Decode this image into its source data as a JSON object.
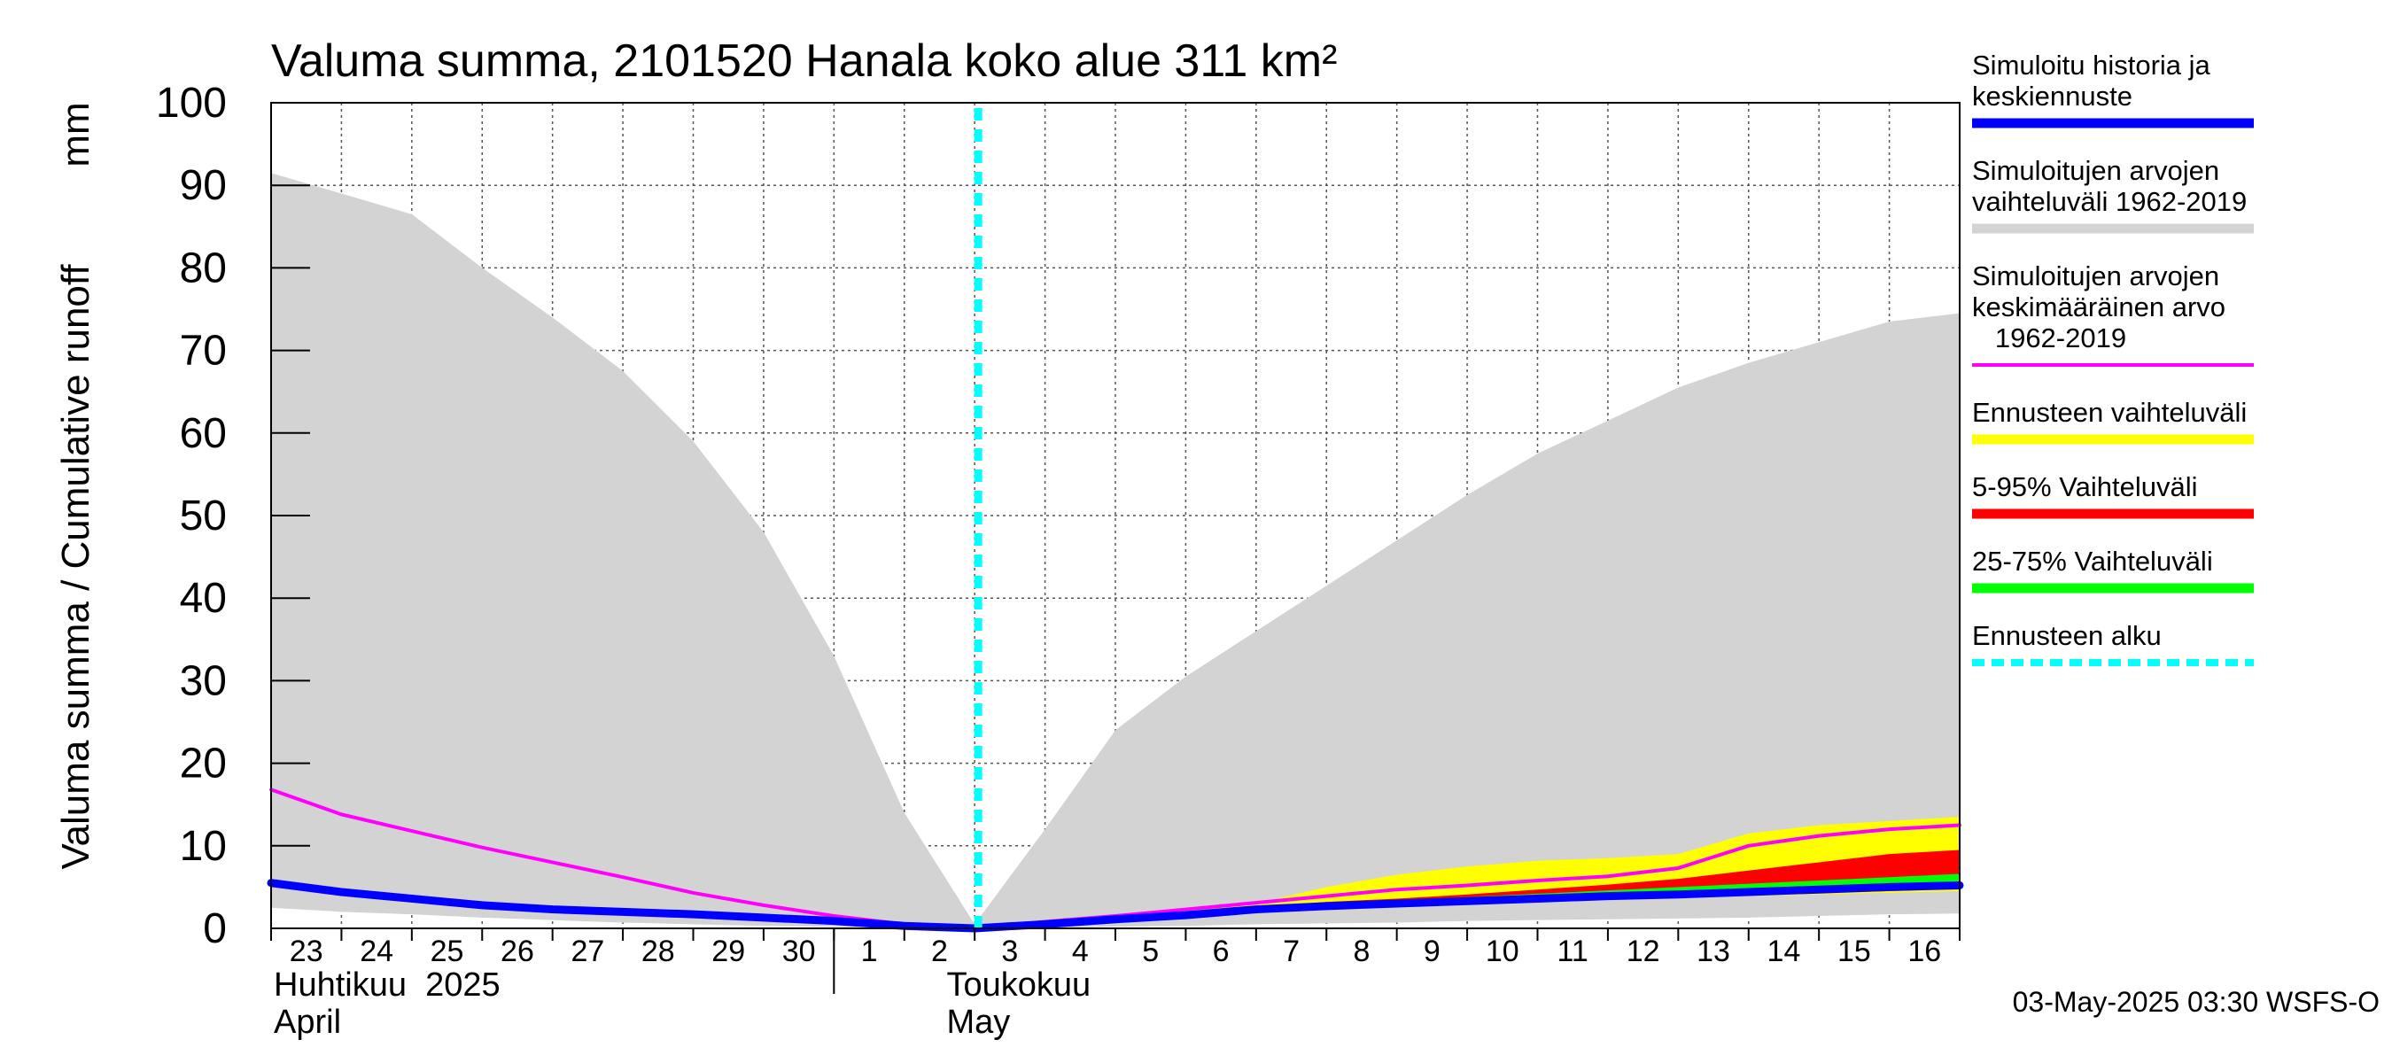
{
  "chart_data": {
    "type": "area",
    "title": "Valuma summa, 2101520 Hanala koko alue 311 km²",
    "ylabel": "Valuma summa / Cumulative runoff",
    "yunit": "mm",
    "ylim": [
      0,
      100
    ],
    "yticks": [
      0,
      10,
      20,
      30,
      40,
      50,
      60,
      70,
      80,
      90,
      100
    ],
    "grid": true,
    "x_day_labels": [
      "23",
      "24",
      "25",
      "26",
      "27",
      "28",
      "29",
      "30",
      "1",
      "2",
      "3",
      "4",
      "5",
      "6",
      "7",
      "8",
      "9",
      "10",
      "11",
      "12",
      "13",
      "14",
      "15",
      "16"
    ],
    "month_labels": [
      {
        "fi": "Huhtikuu  2025",
        "en": "April"
      },
      {
        "fi": "Toukokuu",
        "en": "May"
      }
    ],
    "forecast_start": "2025-05-03",
    "legend_position": "right",
    "legend": [
      {
        "label_lines": [
          "Simuloitu historia ja",
          "keskiennuste"
        ],
        "color": "#0000ff",
        "style": "thick"
      },
      {
        "label_lines": [
          "Simuloitujen arvojen",
          "vaihteluväli 1962-2019"
        ],
        "color": "#d3d3d3",
        "style": "thick"
      },
      {
        "label_lines": [
          "Simuloitujen arvojen",
          "keskimääräinen arvo",
          "   1962-2019"
        ],
        "color": "#ff00ff",
        "style": "line"
      },
      {
        "label_lines": [
          "Ennusteen vaihteluväli"
        ],
        "color": "#ffff00",
        "style": "thick"
      },
      {
        "label_lines": [
          "5-95% Vaihteluväli"
        ],
        "color": "#ff0000",
        "style": "thick"
      },
      {
        "label_lines": [
          "25-75% Vaihteluväli"
        ],
        "color": "#00ff00",
        "style": "thick"
      },
      {
        "label_lines": [
          "Ennusteen alku"
        ],
        "color": "#00ffff",
        "style": "dashed"
      }
    ],
    "series": [
      {
        "name": "Simuloitujen arvojen vaihteluväli 1962-2019",
        "kind": "band",
        "color": "#d3d3d3",
        "x": [
          -0.5,
          0.5,
          1.5,
          2.5,
          3.5,
          4.5,
          5.5,
          6.5,
          7.5,
          8.5,
          9.5,
          10.5,
          11.5,
          12.5,
          13.5,
          14.5,
          15.5,
          16.5,
          17.5,
          18.5,
          19.5,
          20.5,
          21.5,
          22.5,
          23.5
        ],
        "upper": [
          91.5,
          89,
          86.5,
          80,
          74,
          67.5,
          59,
          48,
          33,
          14,
          0.5,
          12,
          24,
          30.5,
          36,
          41.5,
          47,
          52.5,
          57.5,
          61.5,
          65.5,
          68.5,
          71,
          73.5,
          74.5
        ],
        "lower": [
          2.5,
          2,
          1.7,
          1.3,
          1.0,
          0.7,
          0.5,
          0.3,
          0.2,
          0.1,
          0.0,
          0.1,
          0.2,
          0.3,
          0.5,
          0.6,
          0.7,
          0.9,
          1.0,
          1.1,
          1.2,
          1.3,
          1.5,
          1.7,
          1.8
        ]
      },
      {
        "name": "Ennusteen vaihteluväli",
        "kind": "band",
        "color": "#ffff00",
        "x": [
          10.5,
          11.5,
          12.5,
          13.5,
          14.5,
          15.5,
          16.5,
          17.5,
          18.5,
          19.5,
          20.5,
          21.5,
          22.5,
          23.5
        ],
        "upper": [
          0.3,
          1.5,
          2.2,
          3.0,
          5.0,
          6.5,
          7.5,
          8.2,
          8.5,
          9.0,
          11.5,
          12.5,
          13.0,
          13.5
        ],
        "lower": [
          0.3,
          1.2,
          1.7,
          2.3,
          2.6,
          2.8,
          3.0,
          3.3,
          3.5,
          3.7,
          3.9,
          4.1,
          4.3,
          4.5
        ]
      },
      {
        "name": "5-95% Vaihteluväli",
        "kind": "band",
        "color": "#ff0000",
        "x": [
          10.5,
          11.5,
          12.5,
          13.5,
          14.5,
          15.5,
          16.5,
          17.5,
          18.5,
          19.5,
          20.5,
          21.5,
          22.5,
          23.5
        ],
        "upper": [
          0.3,
          1.4,
          1.9,
          2.5,
          3.2,
          3.6,
          4.1,
          4.7,
          5.3,
          6.0,
          7.0,
          8.0,
          9.0,
          9.5
        ],
        "lower": [
          0.3,
          1.3,
          1.7,
          2.3,
          2.7,
          3.0,
          3.2,
          3.4,
          3.6,
          3.8,
          4.0,
          4.3,
          4.5,
          4.8
        ]
      },
      {
        "name": "25-75% Vaihteluväli",
        "kind": "band",
        "color": "#00ff00",
        "x": [
          10.5,
          11.5,
          12.5,
          13.5,
          14.5,
          15.5,
          16.5,
          17.5,
          18.5,
          19.5,
          20.5,
          21.5,
          22.5,
          23.5
        ],
        "upper": [
          0.3,
          1.4,
          1.8,
          2.6,
          3.0,
          3.4,
          3.8,
          4.2,
          4.6,
          5.0,
          5.4,
          5.8,
          6.2,
          6.6
        ],
        "lower": [
          0.3,
          1.3,
          1.7,
          2.4,
          2.8,
          3.1,
          3.4,
          3.7,
          4.0,
          4.3,
          4.6,
          4.9,
          5.2,
          5.5
        ]
      },
      {
        "name": "Simuloitujen arvojen keskimääräinen arvo 1962-2019",
        "kind": "line",
        "color": "#ff00ff",
        "width": 4,
        "x": [
          -0.5,
          0.5,
          1.5,
          2.5,
          3.5,
          4.5,
          5.5,
          6.5,
          7.5,
          8.5,
          9.5,
          10.5,
          11.5,
          12.5,
          13.5,
          14.5,
          15.5,
          16.5,
          17.5,
          18.5,
          19.5,
          20.5,
          21.5,
          22.5,
          23.5
        ],
        "y": [
          16.8,
          13.8,
          11.8,
          9.8,
          8.0,
          6.2,
          4.3,
          2.8,
          1.5,
          0.5,
          0.0,
          0.8,
          1.5,
          2.3,
          3.1,
          3.9,
          4.7,
          5.2,
          5.8,
          6.3,
          7.3,
          10.0,
          11.2,
          12.0,
          12.5
        ]
      },
      {
        "name": "Simuloitu historia ja keskiennuste",
        "kind": "line",
        "color": "#0000ff",
        "width": 9,
        "x": [
          -0.5,
          0.5,
          1.5,
          2.5,
          3.5,
          4.5,
          5.5,
          6.5,
          7.5,
          8.5,
          9.5,
          10.5,
          11.5,
          12.5,
          13.5,
          14.5,
          15.5,
          16.5,
          17.5,
          18.5,
          19.5,
          20.5,
          21.5,
          22.5,
          23.5
        ],
        "y": [
          5.5,
          4.4,
          3.6,
          2.8,
          2.3,
          2.0,
          1.7,
          1.3,
          0.9,
          0.3,
          0.0,
          0.5,
          1.1,
          1.6,
          2.3,
          2.7,
          3.0,
          3.3,
          3.6,
          3.9,
          4.1,
          4.4,
          4.7,
          5.0,
          5.2
        ]
      }
    ]
  },
  "footer_text": "03-May-2025 03:30 WSFS-O"
}
